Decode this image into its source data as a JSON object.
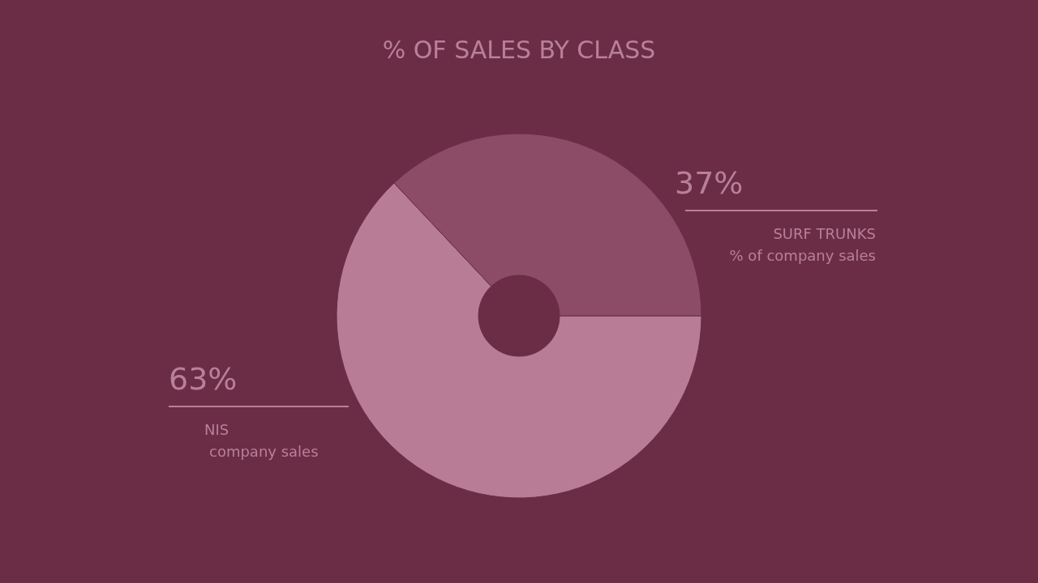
{
  "chart_data": {
    "type": "donut",
    "title": "% OF SALES BY CLASS",
    "categories": [
      "NIS",
      "SURF TRUNKS"
    ],
    "values": [
      63,
      37
    ],
    "colors": [
      "#b87c96",
      "#8c4c67"
    ],
    "value_labels": [
      "63%",
      "37%"
    ],
    "annotations": [
      "company sales",
      "% of company sales"
    ],
    "legend": false
  }
}
